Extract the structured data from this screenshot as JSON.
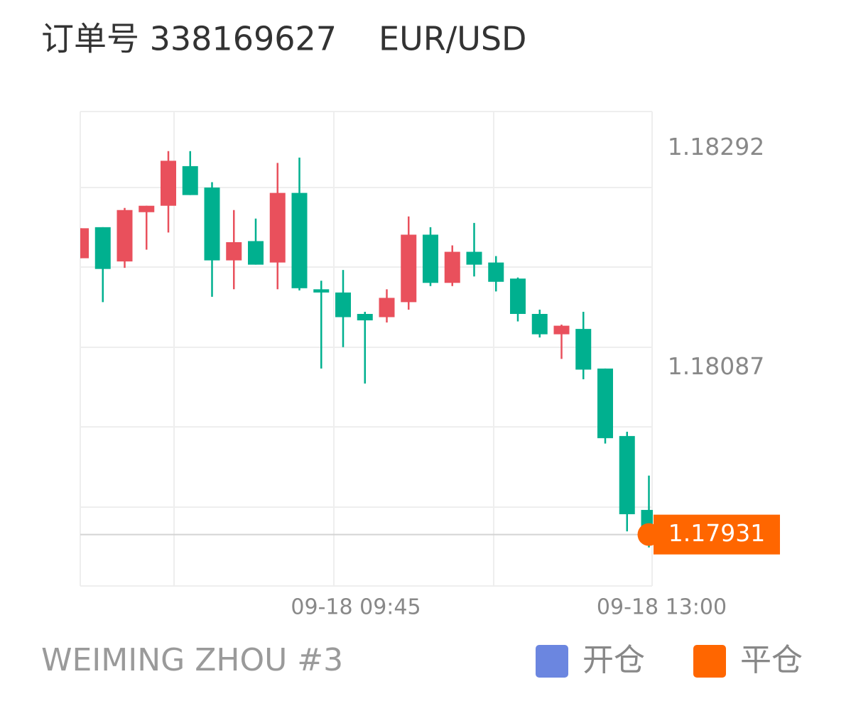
{
  "header": {
    "order": "订单号 338169627",
    "symbol": "EUR/USD"
  },
  "chart_data": {
    "type": "candlestick",
    "categories": [
      null,
      null,
      null,
      null,
      null,
      null,
      null,
      null,
      null,
      null,
      null,
      null,
      "09-18 09:45",
      null,
      null,
      null,
      null,
      null,
      null,
      null,
      null,
      null,
      null,
      null,
      null,
      null,
      "09-18 13:00"
    ],
    "open": [
      1.18189,
      1.18218,
      1.18186,
      1.18232,
      1.18238,
      1.18275,
      1.18255,
      1.18187,
      1.18205,
      1.18185,
      1.1825,
      1.1816,
      1.18157,
      1.18137,
      1.18134,
      1.18148,
      1.18211,
      1.18166,
      1.18195,
      1.18185,
      1.1817,
      1.18137,
      1.18118,
      1.18123,
      1.18086,
      1.18023,
      1.17954
    ],
    "high": [
      1.18217,
      1.18218,
      1.18236,
      1.18238,
      1.18289,
      1.18289,
      1.1826,
      1.18234,
      1.18226,
      1.18278,
      1.18283,
      1.18168,
      1.18178,
      1.18139,
      1.1816,
      1.18228,
      1.18218,
      1.18201,
      1.18222,
      1.18191,
      1.18171,
      1.18141,
      1.18127,
      1.18139,
      1.18086,
      1.18027,
      1.17986
    ],
    "low": [
      1.18189,
      1.18148,
      1.1818,
      1.18197,
      1.18213,
      1.18248,
      1.18153,
      1.1816,
      1.18183,
      1.1816,
      1.18159,
      1.18086,
      1.18106,
      1.18072,
      1.18129,
      1.18141,
      1.18163,
      1.18163,
      1.18172,
      1.18158,
      1.1813,
      1.18115,
      1.18095,
      1.18076,
      1.18016,
      1.17934,
      1.17919
    ],
    "close": [
      1.18217,
      1.18179,
      1.18234,
      1.18238,
      1.1828,
      1.18248,
      1.18187,
      1.18204,
      1.18183,
      1.1825,
      1.18161,
      1.18157,
      1.18134,
      1.18131,
      1.18152,
      1.18211,
      1.18166,
      1.18195,
      1.18183,
      1.18167,
      1.18137,
      1.18118,
      1.18126,
      1.18085,
      1.18021,
      1.1795,
      1.17931
    ],
    "up_color": "#e9505c",
    "down_color": "#00b08f",
    "ylim": [
      1.17883,
      1.18326
    ],
    "yticks": [
      1.18292,
      1.18087
    ],
    "current_price": 1.17931,
    "current_price_color": "#ff6600",
    "markers": [
      {
        "name": "开仓",
        "color": "#6b86e0"
      },
      {
        "name": "平仓",
        "color": "#ff6600"
      }
    ]
  },
  "footer": {
    "account": "WEIMING ZHOU #3"
  }
}
